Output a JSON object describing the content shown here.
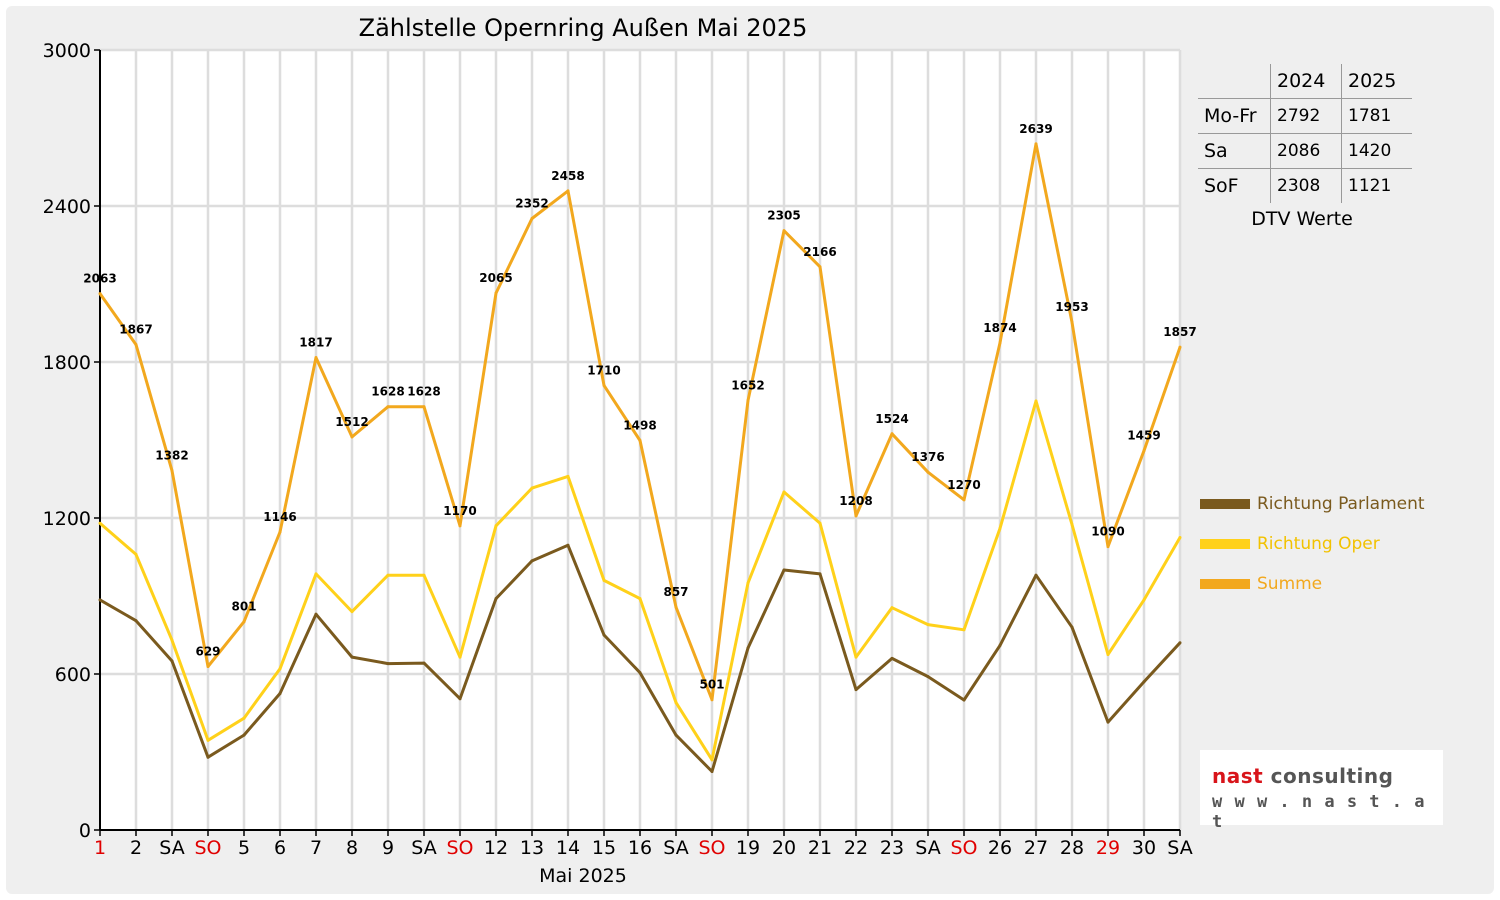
{
  "chart_data": {
    "type": "line",
    "title": "Zählstelle Opernring Außen Mai 2025",
    "xlabel": "Mai 2025",
    "ylabel": "",
    "ylim": [
      0,
      3000
    ],
    "y_ticks": [
      "0",
      "600",
      "1200",
      "1800",
      "2400",
      "3000"
    ],
    "categories": [
      "1",
      "2",
      "SA",
      "SO",
      "5",
      "6",
      "7",
      "8",
      "9",
      "SA",
      "SO",
      "12",
      "13",
      "14",
      "15",
      "16",
      "SA",
      "SO",
      "19",
      "20",
      "21",
      "22",
      "23",
      "SA",
      "SO",
      "26",
      "27",
      "28",
      "29",
      "30",
      "SA"
    ],
    "highlight_categories": [
      "1",
      "SO",
      "29"
    ],
    "highlight_color": "#e00000",
    "grid": true,
    "legend_position": "right",
    "series": [
      {
        "name": "Richtung Parlament",
        "color": "#7a5a1e",
        "values": [
          885,
          805,
          650,
          280,
          365,
          525,
          830,
          665,
          640,
          642,
          505,
          890,
          1035,
          1095,
          750,
          605,
          365,
          225,
          700,
          1000,
          985,
          540,
          660,
          590,
          500,
          710,
          980,
          780,
          415,
          570,
          720
        ]
      },
      {
        "name": "Richtung Oper",
        "color": "#ffd11a",
        "values": [
          1180,
          1060,
          730,
          345,
          430,
          620,
          985,
          840,
          980,
          980,
          665,
          1170,
          1315,
          1360,
          960,
          890,
          490,
          270,
          950,
          1300,
          1180,
          665,
          855,
          790,
          770,
          1160,
          1650,
          1175,
          675,
          885,
          1125
        ]
      },
      {
        "name": "Summe",
        "color": "#f2a81e",
        "show_labels": true,
        "values": [
          2063,
          1867,
          1382,
          629,
          801,
          1146,
          1817,
          1512,
          1628,
          1628,
          1170,
          2065,
          2352,
          2458,
          1710,
          1498,
          857,
          501,
          1652,
          2305,
          2166,
          1208,
          1524,
          1376,
          1270,
          1874,
          2639,
          1953,
          1090,
          1459,
          1857
        ]
      }
    ]
  },
  "dtv_table": {
    "headers": [
      "",
      "2024",
      "2025"
    ],
    "rows": [
      {
        "label": "Mo-Fr",
        "v2024": "2792",
        "v2025": "1781"
      },
      {
        "label": "Sa",
        "v2024": "2086",
        "v2025": "1420"
      },
      {
        "label": "SoF",
        "v2024": "2308",
        "v2025": "1121"
      }
    ],
    "caption": "DTV Werte"
  },
  "logo": {
    "name_part1": "nast",
    "name_part2": " consulting",
    "url": "w w w . n a s t . a t"
  }
}
